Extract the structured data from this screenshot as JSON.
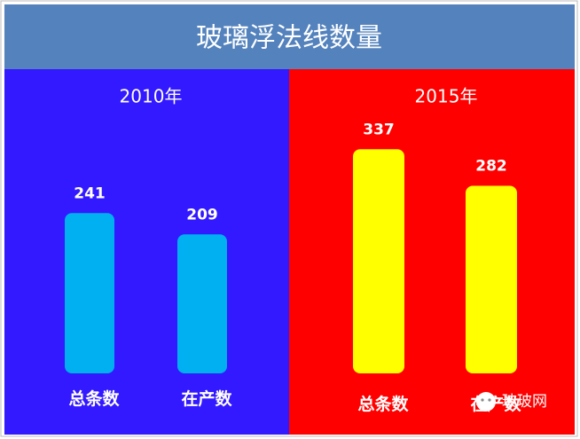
{
  "title": "玻璃浮法线数量",
  "watermark": "玻玻网",
  "chart_data": [
    {
      "type": "bar",
      "title": "2010年",
      "background": "#3319ff",
      "color": "#00b0f0",
      "categories": [
        "总条数",
        "在产数"
      ],
      "values": [
        241,
        209
      ]
    },
    {
      "type": "bar",
      "title": "2015年",
      "background": "#ff0000",
      "color": "#ffff00",
      "categories": [
        "总条数",
        "在产数"
      ],
      "values": [
        337,
        282
      ]
    }
  ]
}
